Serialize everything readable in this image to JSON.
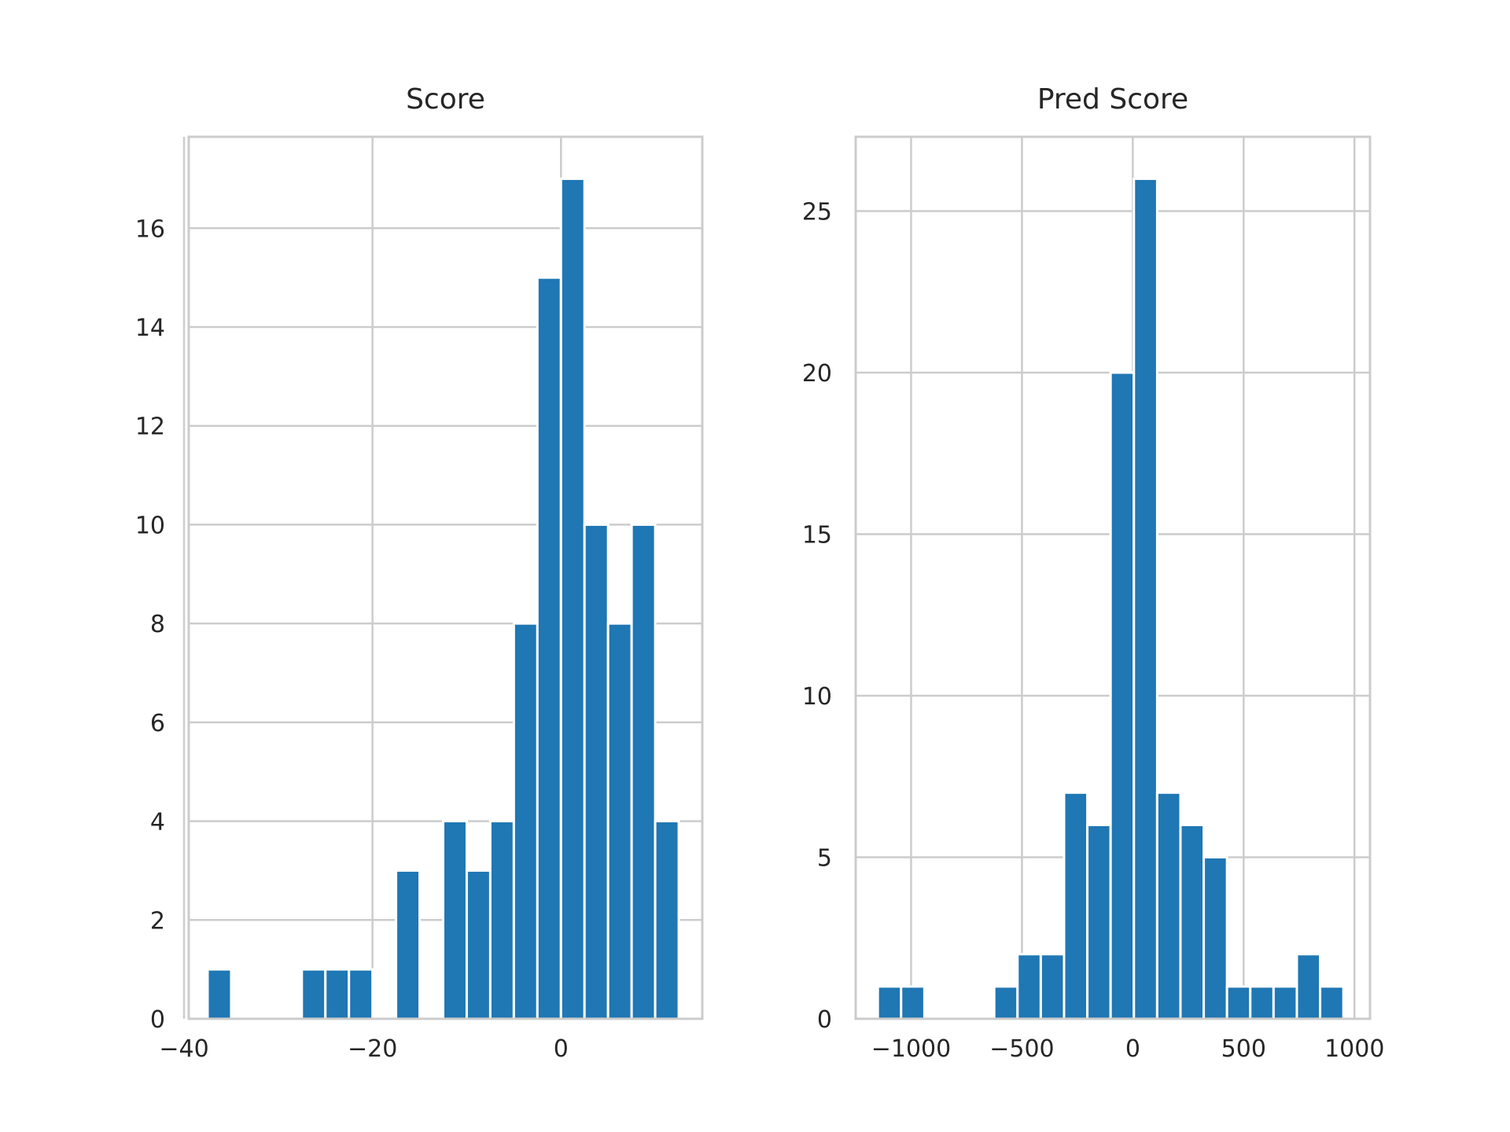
{
  "chart_data": [
    {
      "type": "bar",
      "subtype": "histogram",
      "title": "Score",
      "xlabel": "",
      "ylabel": "",
      "xlim": [
        -39.5,
        15.0
      ],
      "ylim": [
        0,
        17.85
      ],
      "xticks": [
        -40,
        -20,
        0
      ],
      "xtick_labels": [
        "−40",
        "−20",
        "0"
      ],
      "yticks": [
        0,
        2,
        4,
        6,
        8,
        10,
        12,
        14,
        16
      ],
      "ytick_labels": [
        "0",
        "2",
        "4",
        "6",
        "8",
        "10",
        "12",
        "14",
        "16"
      ],
      "grid": true,
      "color": "#1f77b4",
      "bins": [
        {
          "x0": -37.5,
          "x1": -35.0,
          "count": 1
        },
        {
          "x0": -35.0,
          "x1": -32.5,
          "count": 0
        },
        {
          "x0": -32.5,
          "x1": -30.0,
          "count": 0
        },
        {
          "x0": -30.0,
          "x1": -27.5,
          "count": 0
        },
        {
          "x0": -27.5,
          "x1": -25.0,
          "count": 1
        },
        {
          "x0": -25.0,
          "x1": -22.5,
          "count": 1
        },
        {
          "x0": -22.5,
          "x1": -20.0,
          "count": 1
        },
        {
          "x0": -20.0,
          "x1": -17.5,
          "count": 0
        },
        {
          "x0": -17.5,
          "x1": -15.0,
          "count": 3
        },
        {
          "x0": -15.0,
          "x1": -12.5,
          "count": 0
        },
        {
          "x0": -12.5,
          "x1": -10.0,
          "count": 4
        },
        {
          "x0": -10.0,
          "x1": -7.5,
          "count": 3
        },
        {
          "x0": -7.5,
          "x1": -5.0,
          "count": 4
        },
        {
          "x0": -5.0,
          "x1": -2.5,
          "count": 8
        },
        {
          "x0": -2.5,
          "x1": 0.0,
          "count": 15
        },
        {
          "x0": 0.0,
          "x1": 2.5,
          "count": 17
        },
        {
          "x0": 2.5,
          "x1": 5.0,
          "count": 10
        },
        {
          "x0": 5.0,
          "x1": 7.5,
          "count": 8
        },
        {
          "x0": 7.5,
          "x1": 10.0,
          "count": 10
        },
        {
          "x0": 10.0,
          "x1": 12.5,
          "count": 4
        }
      ]
    },
    {
      "type": "bar",
      "subtype": "histogram",
      "title": "Pred Score",
      "xlabel": "",
      "ylabel": "",
      "xlim": [
        -1250,
        1070
      ],
      "ylim": [
        0,
        27.3
      ],
      "xticks": [
        -1000,
        -500,
        0,
        500,
        1000
      ],
      "xtick_labels": [
        "−1000",
        "−500",
        "0",
        "500",
        "1000"
      ],
      "yticks": [
        0,
        5,
        10,
        15,
        20,
        25
      ],
      "ytick_labels": [
        "0",
        "5",
        "10",
        "15",
        "20",
        "25"
      ],
      "grid": true,
      "color": "#1f77b4",
      "bins": [
        {
          "x0": -1150,
          "x1": -1045,
          "count": 1
        },
        {
          "x0": -1045,
          "x1": -940,
          "count": 1
        },
        {
          "x0": -940,
          "x1": -835,
          "count": 0
        },
        {
          "x0": -835,
          "x1": -730,
          "count": 0
        },
        {
          "x0": -730,
          "x1": -625,
          "count": 0
        },
        {
          "x0": -625,
          "x1": -520,
          "count": 1
        },
        {
          "x0": -520,
          "x1": -415,
          "count": 2
        },
        {
          "x0": -415,
          "x1": -310,
          "count": 2
        },
        {
          "x0": -310,
          "x1": -205,
          "count": 7
        },
        {
          "x0": -205,
          "x1": -100,
          "count": 6
        },
        {
          "x0": -100,
          "x1": 5,
          "count": 20
        },
        {
          "x0": 5,
          "x1": 110,
          "count": 26
        },
        {
          "x0": 110,
          "x1": 215,
          "count": 7
        },
        {
          "x0": 215,
          "x1": 320,
          "count": 6
        },
        {
          "x0": 320,
          "x1": 425,
          "count": 5
        },
        {
          "x0": 425,
          "x1": 530,
          "count": 1
        },
        {
          "x0": 530,
          "x1": 635,
          "count": 1
        },
        {
          "x0": 635,
          "x1": 740,
          "count": 1
        },
        {
          "x0": 740,
          "x1": 845,
          "count": 2
        },
        {
          "x0": 845,
          "x1": 950,
          "count": 1
        }
      ]
    }
  ]
}
